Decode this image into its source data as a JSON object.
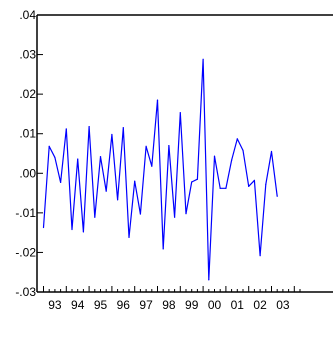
{
  "chart_data": {
    "type": "line",
    "title": "",
    "xlabel": "",
    "ylabel": "",
    "ylim": [
      -0.03,
      0.04
    ],
    "y_ticks": [
      {
        "value": 0.04,
        "label": ".04"
      },
      {
        "value": 0.03,
        "label": ".03"
      },
      {
        "value": 0.02,
        "label": ".02"
      },
      {
        "value": 0.01,
        "label": ".01"
      },
      {
        "value": 0.0,
        "label": ".00"
      },
      {
        "value": -0.01,
        "label": "-.01"
      },
      {
        "value": -0.02,
        "label": "-.02"
      },
      {
        "value": -0.03,
        "label": "-.03"
      }
    ],
    "x_labels": [
      "93",
      "94",
      "95",
      "96",
      "97",
      "98",
      "99",
      "00",
      "01",
      "02",
      "03"
    ],
    "x_start_year": 1993,
    "points_per_year": 4,
    "grid": false,
    "line_color": "#0000ff",
    "series": [
      {
        "values": [
          -0.0137,
          0.0068,
          0.004,
          -0.0023,
          0.0112,
          -0.0142,
          0.0036,
          -0.0148,
          0.0118,
          -0.0111,
          0.0042,
          -0.0045,
          0.0098,
          -0.0067,
          0.0115,
          -0.0162,
          -0.002,
          -0.0103,
          0.0068,
          0.0018,
          0.0185,
          -0.0191,
          0.007,
          -0.0111,
          0.0153,
          -0.0102,
          -0.0022,
          -0.0015,
          0.0288,
          -0.0269,
          0.0043,
          -0.0038,
          -0.0038,
          0.0033,
          0.0087,
          0.0058,
          -0.0033,
          -0.0018,
          -0.0208,
          -0.0028,
          0.0055,
          -0.0058
        ]
      }
    ]
  }
}
